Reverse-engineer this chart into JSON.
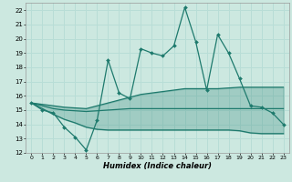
{
  "xlabel": "Humidex (Indice chaleur)",
  "bg_color": "#cce8e0",
  "line_color": "#1e7a6d",
  "grid_color": "#b8ddd6",
  "x_ticks": [
    0,
    1,
    2,
    3,
    4,
    5,
    6,
    7,
    8,
    9,
    10,
    11,
    12,
    13,
    14,
    15,
    16,
    17,
    18,
    19,
    20,
    21,
    22,
    23
  ],
  "y_ticks": [
    12,
    13,
    14,
    15,
    16,
    17,
    18,
    19,
    20,
    21,
    22
  ],
  "xlim": [
    -0.5,
    23.5
  ],
  "ylim": [
    12.0,
    22.5
  ],
  "main_line": [
    15.5,
    15.0,
    14.8,
    13.8,
    13.1,
    12.2,
    14.3,
    18.5,
    16.2,
    15.8,
    19.3,
    19.0,
    18.8,
    19.5,
    22.2,
    19.8,
    16.4,
    20.3,
    19.0,
    17.2,
    15.3,
    15.2,
    14.8,
    14.0
  ],
  "upper_line": [
    15.5,
    15.4,
    15.3,
    15.2,
    15.15,
    15.1,
    15.3,
    15.5,
    15.7,
    15.9,
    16.1,
    16.2,
    16.3,
    16.4,
    16.5,
    16.5,
    16.5,
    16.5,
    16.55,
    16.6,
    16.6,
    16.6,
    16.6,
    16.6
  ],
  "mid_line": [
    15.5,
    15.3,
    15.1,
    15.0,
    14.95,
    14.9,
    14.95,
    15.0,
    15.05,
    15.1,
    15.1,
    15.1,
    15.1,
    15.1,
    15.1,
    15.1,
    15.1,
    15.1,
    15.1,
    15.1,
    15.1,
    15.1,
    15.1,
    15.1
  ],
  "lower_line": [
    15.5,
    15.1,
    14.7,
    14.35,
    14.1,
    13.8,
    13.65,
    13.6,
    13.6,
    13.6,
    13.6,
    13.6,
    13.6,
    13.6,
    13.6,
    13.6,
    13.6,
    13.6,
    13.6,
    13.55,
    13.4,
    13.35,
    13.35,
    13.35
  ]
}
